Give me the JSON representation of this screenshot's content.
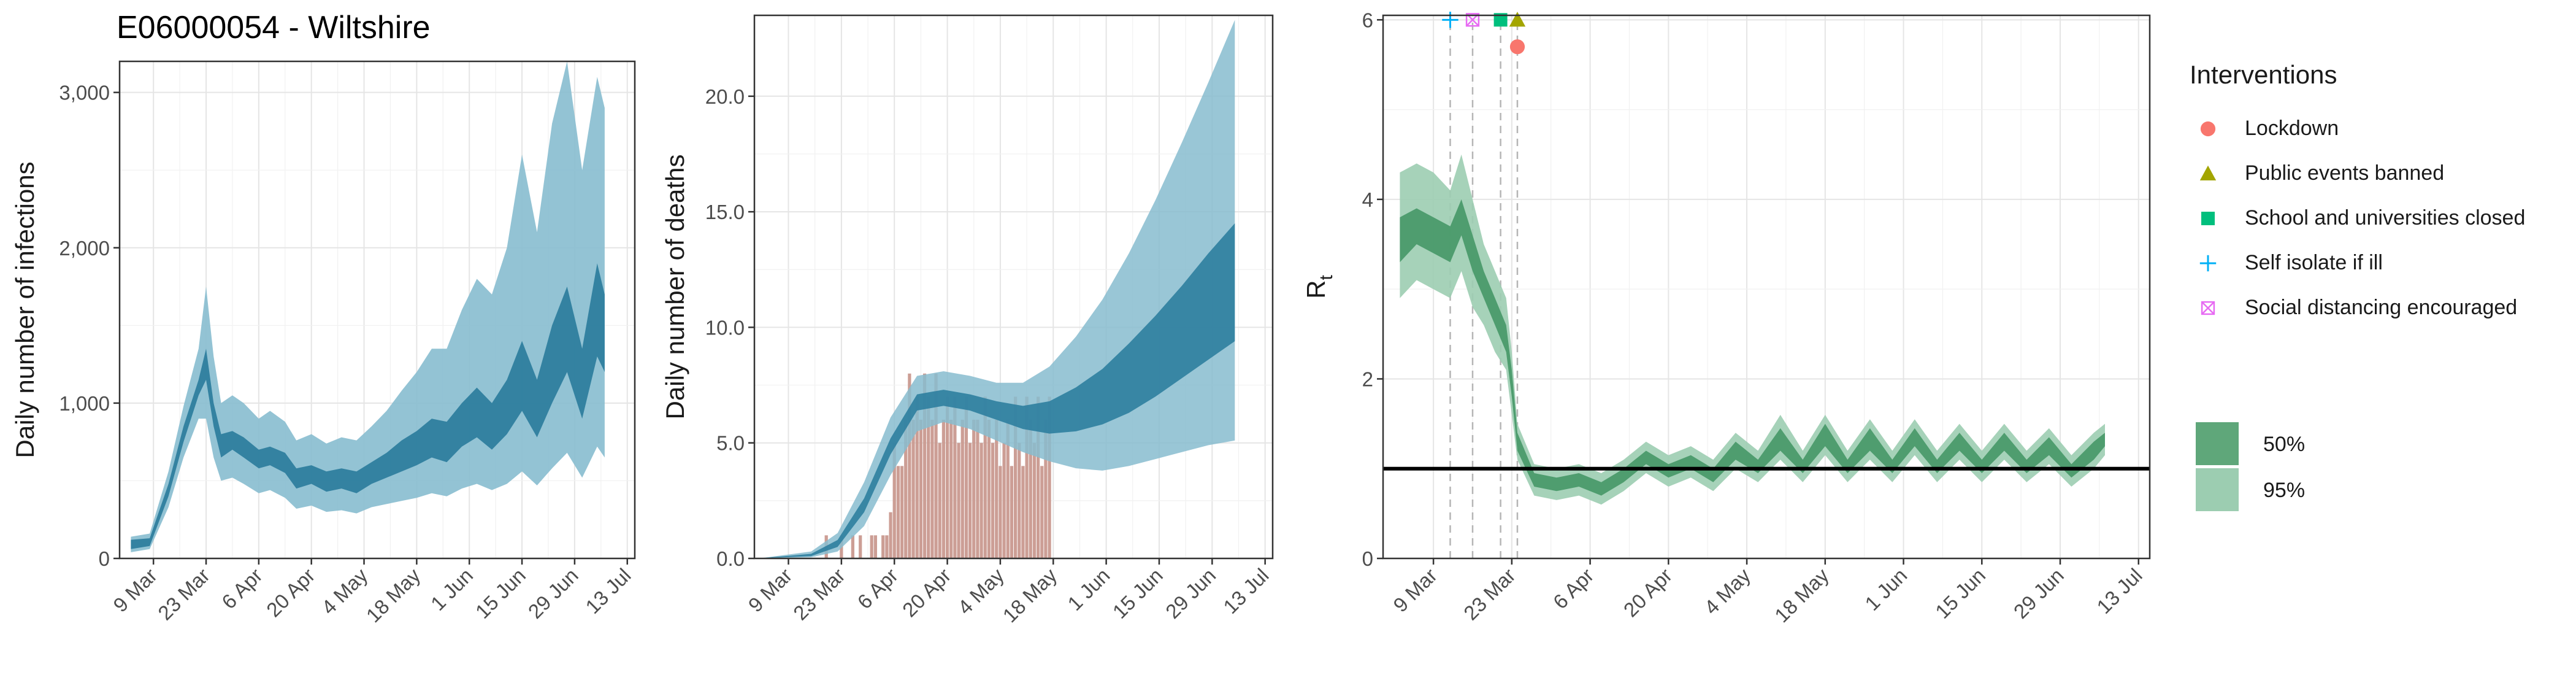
{
  "page_title": "E06000054 - Wiltshire",
  "colors": {
    "infection_dark": "#2e7e9e",
    "infection_light": "#87bccf",
    "death_bar": "#c9998f",
    "rt_dark": "#4a9a6a",
    "rt_light": "#9ccdb1",
    "lockdown": "#f8766d",
    "public_events": "#a3a500",
    "schools": "#00bf7d",
    "self_isolate": "#00b0f6",
    "social_distancing": "#e76bf3",
    "grid": "#e5e5e5"
  },
  "legend": {
    "interventions_title": "Interventions",
    "interventions": [
      {
        "label": "Lockdown",
        "shape": "circle",
        "color": "#f8766d"
      },
      {
        "label": "Public events banned",
        "shape": "triangle",
        "color": "#a3a500"
      },
      {
        "label": "School and universities closed",
        "shape": "square",
        "color": "#00bf7d"
      },
      {
        "label": "Self isolate if ill",
        "shape": "plus",
        "color": "#00b0f6"
      },
      {
        "label": "Social distancing encouraged",
        "shape": "boxcross",
        "color": "#e76bf3"
      }
    ],
    "ci": [
      {
        "label": "50%",
        "color": "#5fa77a"
      },
      {
        "label": "95%",
        "color": "#9ccdb1"
      }
    ]
  },
  "chart_data": [
    {
      "type": "area",
      "ylabel": "Daily number of infections",
      "x_ticks": [
        "9 Mar",
        "23 Mar",
        "6 Apr",
        "20 Apr",
        "4 May",
        "18 May",
        "1 Jun",
        "15 Jun",
        "29 Jun",
        "13 Jul"
      ],
      "y_ticks": [
        "0",
        "1,000",
        "2,000",
        "3,000"
      ],
      "ylim": [
        0,
        3200
      ],
      "grid": true,
      "series": [
        {
          "name": "50%",
          "x": [
            "2020-03-03",
            "2020-03-08",
            "2020-03-13",
            "2020-03-17",
            "2020-03-21",
            "2020-03-23",
            "2020-03-25",
            "2020-03-27",
            "2020-03-30",
            "2020-04-02",
            "2020-04-06",
            "2020-04-09",
            "2020-04-13",
            "2020-04-16",
            "2020-04-20",
            "2020-04-24",
            "2020-04-28",
            "2020-05-02",
            "2020-05-06",
            "2020-05-10",
            "2020-05-14",
            "2020-05-18",
            "2020-05-22",
            "2020-05-26",
            "2020-05-30",
            "2020-06-03",
            "2020-06-07",
            "2020-06-11",
            "2020-06-15",
            "2020-06-19",
            "2020-06-23",
            "2020-06-27",
            "2020-07-01",
            "2020-07-05",
            "2020-07-07"
          ],
          "lower": [
            60,
            80,
            400,
            750,
            1050,
            1150,
            850,
            650,
            700,
            650,
            580,
            600,
            550,
            450,
            480,
            430,
            450,
            420,
            480,
            520,
            560,
            600,
            650,
            620,
            720,
            780,
            700,
            800,
            950,
            780,
            1000,
            1200,
            900,
            1300,
            1200
          ],
          "upper": [
            120,
            130,
            480,
            850,
            1150,
            1350,
            1000,
            800,
            820,
            780,
            700,
            720,
            680,
            580,
            600,
            560,
            580,
            560,
            620,
            680,
            760,
            820,
            900,
            880,
            1000,
            1100,
            1000,
            1150,
            1400,
            1150,
            1500,
            1750,
            1350,
            1900,
            1700
          ]
        },
        {
          "name": "95%",
          "x": [
            "2020-03-03",
            "2020-03-08",
            "2020-03-13",
            "2020-03-17",
            "2020-03-21",
            "2020-03-23",
            "2020-03-25",
            "2020-03-27",
            "2020-03-30",
            "2020-04-02",
            "2020-04-06",
            "2020-04-09",
            "2020-04-13",
            "2020-04-16",
            "2020-04-20",
            "2020-04-24",
            "2020-04-28",
            "2020-05-02",
            "2020-05-06",
            "2020-05-10",
            "2020-05-14",
            "2020-05-18",
            "2020-05-22",
            "2020-05-26",
            "2020-05-30",
            "2020-06-03",
            "2020-06-07",
            "2020-06-11",
            "2020-06-15",
            "2020-06-19",
            "2020-06-23",
            "2020-06-27",
            "2020-07-01",
            "2020-07-05",
            "2020-07-07"
          ],
          "lower": [
            40,
            60,
            330,
            650,
            900,
            900,
            650,
            500,
            520,
            480,
            420,
            440,
            390,
            320,
            340,
            300,
            310,
            290,
            330,
            350,
            370,
            390,
            420,
            400,
            450,
            480,
            440,
            480,
            560,
            470,
            580,
            680,
            520,
            720,
            650
          ],
          "upper": [
            140,
            160,
            560,
            980,
            1350,
            1750,
            1300,
            1000,
            1050,
            1000,
            900,
            950,
            880,
            760,
            800,
            740,
            780,
            760,
            850,
            950,
            1080,
            1200,
            1350,
            1350,
            1600,
            1800,
            1700,
            2000,
            2600,
            2100,
            2800,
            3200,
            2500,
            3100,
            2900
          ]
        }
      ]
    },
    {
      "type": "bar",
      "ylabel": "Daily number of deaths",
      "x_ticks": [
        "9 Mar",
        "23 Mar",
        "6 Apr",
        "20 Apr",
        "4 May",
        "18 May",
        "1 Jun",
        "15 Jun",
        "29 Jun",
        "13 Jul"
      ],
      "y_ticks": [
        "0.0",
        "5.0",
        "10.0",
        "15.0",
        "20.0"
      ],
      "ylim": [
        0,
        23.5
      ],
      "grid": true,
      "bars": {
        "x": [
          "2020-03-19",
          "2020-03-23",
          "2020-03-26",
          "2020-03-28",
          "2020-03-31",
          "2020-04-01",
          "2020-04-03",
          "2020-04-04",
          "2020-04-05",
          "2020-04-06",
          "2020-04-07",
          "2020-04-08",
          "2020-04-09",
          "2020-04-10",
          "2020-04-11",
          "2020-04-12",
          "2020-04-13",
          "2020-04-14",
          "2020-04-15",
          "2020-04-16",
          "2020-04-17",
          "2020-04-18",
          "2020-04-19",
          "2020-04-20",
          "2020-04-21",
          "2020-04-22",
          "2020-04-23",
          "2020-04-24",
          "2020-04-25",
          "2020-04-26",
          "2020-04-27",
          "2020-04-28",
          "2020-04-29",
          "2020-04-30",
          "2020-05-01",
          "2020-05-02",
          "2020-05-03",
          "2020-05-04",
          "2020-05-05",
          "2020-05-06",
          "2020-05-07",
          "2020-05-08",
          "2020-05-09",
          "2020-05-10",
          "2020-05-11",
          "2020-05-12",
          "2020-05-13",
          "2020-05-14",
          "2020-05-15",
          "2020-05-16",
          "2020-05-17"
        ],
        "values": [
          1,
          1,
          1,
          1,
          1,
          1,
          1,
          1,
          2,
          5,
          4,
          4,
          6,
          8,
          6,
          7,
          6,
          8,
          7,
          6,
          8,
          5,
          6,
          7,
          6,
          7,
          5,
          6,
          7,
          5,
          6,
          6,
          5,
          7,
          6,
          5,
          6,
          4,
          5,
          6,
          4,
          7,
          5,
          4,
          7,
          6,
          5,
          7,
          4,
          6,
          7
        ]
      },
      "series": [
        {
          "name": "50%",
          "x": [
            "2020-03-01",
            "2020-03-15",
            "2020-03-22",
            "2020-03-29",
            "2020-04-05",
            "2020-04-12",
            "2020-04-19",
            "2020-04-26",
            "2020-05-03",
            "2020-05-10",
            "2020-05-17",
            "2020-05-24",
            "2020-05-31",
            "2020-06-07",
            "2020-06-14",
            "2020-06-21",
            "2020-06-28",
            "2020-07-05"
          ],
          "lower": [
            0,
            0.1,
            0.5,
            2,
            4.5,
            6.4,
            6.6,
            6.4,
            6,
            5.6,
            5.4,
            5.5,
            5.8,
            6.3,
            7,
            7.8,
            8.6,
            9.4
          ],
          "upper": [
            0,
            0.2,
            0.8,
            2.6,
            5.2,
            7.1,
            7.3,
            7.1,
            6.8,
            6.6,
            6.8,
            7.4,
            8.2,
            9.3,
            10.5,
            11.8,
            13.2,
            14.5
          ]
        },
        {
          "name": "95%",
          "x": [
            "2020-03-01",
            "2020-03-15",
            "2020-03-22",
            "2020-03-29",
            "2020-04-05",
            "2020-04-12",
            "2020-04-19",
            "2020-04-26",
            "2020-05-03",
            "2020-05-10",
            "2020-05-17",
            "2020-05-24",
            "2020-05-31",
            "2020-06-07",
            "2020-06-14",
            "2020-06-21",
            "2020-06-28",
            "2020-07-05"
          ],
          "lower": [
            0,
            0.05,
            0.3,
            1.4,
            3.6,
            5.5,
            5.9,
            5.6,
            5.1,
            4.6,
            4.2,
            3.9,
            3.8,
            4,
            4.3,
            4.6,
            4.9,
            5.1
          ],
          "upper": [
            0,
            0.3,
            1.1,
            3.3,
            6.1,
            7.9,
            8.1,
            7.9,
            7.6,
            7.6,
            8.3,
            9.6,
            11.2,
            13.2,
            15.5,
            18,
            20.6,
            23.3
          ]
        }
      ]
    },
    {
      "type": "line",
      "ylabel": "R",
      "ylabel_sub": "t",
      "x_ticks": [
        "9 Mar",
        "23 Mar",
        "6 Apr",
        "20 Apr",
        "4 May",
        "18 May",
        "1 Jun",
        "15 Jun",
        "29 Jun",
        "13 Jul"
      ],
      "y_ticks": [
        "0",
        "2",
        "4",
        "6"
      ],
      "ylim": [
        0,
        6.05
      ],
      "reference_line": 1,
      "grid": true,
      "series": [
        {
          "name": "50%",
          "x": [
            "2020-03-03",
            "2020-03-06",
            "2020-03-09",
            "2020-03-12",
            "2020-03-14",
            "2020-03-16",
            "2020-03-18",
            "2020-03-20",
            "2020-03-22",
            "2020-03-23",
            "2020-03-24",
            "2020-03-27",
            "2020-03-31",
            "2020-04-04",
            "2020-04-08",
            "2020-04-12",
            "2020-04-16",
            "2020-04-20",
            "2020-04-24",
            "2020-04-28",
            "2020-05-02",
            "2020-05-06",
            "2020-05-10",
            "2020-05-14",
            "2020-05-18",
            "2020-05-22",
            "2020-05-26",
            "2020-05-30",
            "2020-06-03",
            "2020-06-07",
            "2020-06-11",
            "2020-06-15",
            "2020-06-19",
            "2020-06-23",
            "2020-06-27",
            "2020-07-01",
            "2020-07-05",
            "2020-07-07"
          ],
          "lower": [
            3.3,
            3.5,
            3.4,
            3.3,
            3.6,
            3.2,
            2.9,
            2.6,
            2.3,
            1.8,
            1.2,
            0.8,
            0.75,
            0.8,
            0.7,
            0.85,
            1.05,
            0.9,
            1.0,
            0.85,
            1.1,
            0.95,
            1.2,
            0.95,
            1.25,
            0.95,
            1.2,
            0.95,
            1.25,
            0.95,
            1.2,
            0.95,
            1.2,
            0.95,
            1.15,
            0.9,
            1.1,
            1.25
          ],
          "upper": [
            3.8,
            3.9,
            3.8,
            3.7,
            4.0,
            3.6,
            3.2,
            2.9,
            2.6,
            2.1,
            1.4,
            0.95,
            0.9,
            0.95,
            0.85,
            1.0,
            1.2,
            1.05,
            1.15,
            1.0,
            1.3,
            1.1,
            1.45,
            1.1,
            1.5,
            1.1,
            1.45,
            1.1,
            1.45,
            1.1,
            1.4,
            1.1,
            1.4,
            1.1,
            1.35,
            1.05,
            1.3,
            1.4
          ]
        },
        {
          "name": "95%",
          "x": [
            "2020-03-03",
            "2020-03-06",
            "2020-03-09",
            "2020-03-12",
            "2020-03-14",
            "2020-03-16",
            "2020-03-18",
            "2020-03-20",
            "2020-03-22",
            "2020-03-23",
            "2020-03-24",
            "2020-03-27",
            "2020-03-31",
            "2020-04-04",
            "2020-04-08",
            "2020-04-12",
            "2020-04-16",
            "2020-04-20",
            "2020-04-24",
            "2020-04-28",
            "2020-05-02",
            "2020-05-06",
            "2020-05-10",
            "2020-05-14",
            "2020-05-18",
            "2020-05-22",
            "2020-05-26",
            "2020-05-30",
            "2020-06-03",
            "2020-06-07",
            "2020-06-11",
            "2020-06-15",
            "2020-06-19",
            "2020-06-23",
            "2020-06-27",
            "2020-07-01",
            "2020-07-05",
            "2020-07-07"
          ],
          "lower": [
            2.9,
            3.1,
            3.0,
            2.9,
            3.2,
            2.8,
            2.6,
            2.3,
            2.1,
            1.6,
            1.1,
            0.7,
            0.65,
            0.7,
            0.6,
            0.75,
            0.95,
            0.8,
            0.9,
            0.75,
            1.0,
            0.85,
            1.1,
            0.85,
            1.15,
            0.85,
            1.1,
            0.85,
            1.15,
            0.85,
            1.1,
            0.85,
            1.1,
            0.85,
            1.05,
            0.8,
            1.0,
            1.15
          ],
          "upper": [
            4.3,
            4.4,
            4.3,
            4.1,
            4.5,
            4.0,
            3.5,
            3.2,
            2.9,
            2.3,
            1.5,
            1.05,
            1.0,
            1.05,
            0.95,
            1.1,
            1.3,
            1.15,
            1.25,
            1.1,
            1.4,
            1.2,
            1.6,
            1.2,
            1.6,
            1.2,
            1.55,
            1.2,
            1.55,
            1.2,
            1.5,
            1.2,
            1.5,
            1.2,
            1.45,
            1.15,
            1.4,
            1.5
          ]
        }
      ],
      "interventions": [
        {
          "label": "Self isolate if ill",
          "date": "2020-03-12",
          "shape": "plus",
          "color": "#00b0f6",
          "y": 6
        },
        {
          "label": "Social distancing encouraged",
          "date": "2020-03-16",
          "shape": "boxcross",
          "color": "#e76bf3",
          "y": 6
        },
        {
          "label": "School and universities closed",
          "date": "2020-03-21",
          "shape": "square",
          "color": "#00bf7d",
          "y": 6
        },
        {
          "label": "Public events banned",
          "date": "2020-03-24",
          "shape": "triangle",
          "color": "#a3a500",
          "y": 6
        },
        {
          "label": "Lockdown",
          "date": "2020-03-24",
          "shape": "circle",
          "color": "#f8766d",
          "y": 5.7
        }
      ]
    }
  ]
}
